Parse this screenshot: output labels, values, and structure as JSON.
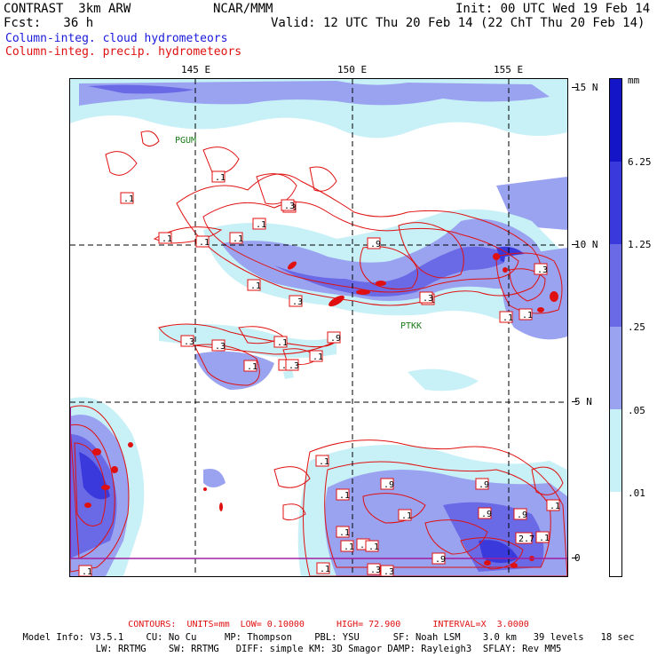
{
  "header": {
    "title": "CONTRAST  3km ARW",
    "center": "NCAR/MMM",
    "init": "Init: 00 UTC Wed 19 Feb 14",
    "fcst": "Fcst:   36 h",
    "valid": "Valid: 12 UTC Thu 20 Feb 14 (22 ChT Thu 20 Feb 14)"
  },
  "legend": {
    "cloud": "Column-integ. cloud hydrometeors",
    "precip": "Column-integ. precip. hydrometeors",
    "cloud_color": "#1a1adc",
    "precip_color": "#e01010"
  },
  "map": {
    "lon_labels": [
      "145 E",
      "150 E",
      "155 E"
    ],
    "lat_labels": [
      "15 N",
      "10 N",
      "5 N",
      "0"
    ],
    "stations": [
      "PGUM",
      "PTKK"
    ]
  },
  "colorbar": {
    "unit": "mm",
    "labels": [
      "6.25",
      "1.25",
      ".25",
      ".05",
      ".01"
    ],
    "colors": [
      "#1515c8",
      "#3a3adc",
      "#6a6ae6",
      "#9aa3f0",
      "#c7f0f7",
      "#ffffff"
    ]
  },
  "contour_labels": [
    ".1",
    ".1",
    ".1",
    ".1",
    ".1",
    ".3",
    ".1",
    ".3",
    ".1",
    ".9",
    ".1",
    ".3",
    ".3",
    ".9",
    ".3",
    ".1",
    ".3",
    ".1",
    ".1",
    ".3",
    ".1",
    ".1",
    ".3",
    ".9",
    ".1",
    ".1",
    ".9",
    ".1",
    ".9",
    ".1",
    ".3",
    ".1",
    ".1",
    ".9",
    ".1",
    ".3",
    ".3",
    ".1",
    ".1",
    "2.7",
    ".1",
    ".9",
    ".1"
  ],
  "footer": {
    "contours": "CONTOURS:  UNITS=mm  LOW= 0.10000      HIGH= 72.900      INTERVAL=X  3.0000",
    "model1": "Model Info: V3.5.1    CU: No Cu     MP: Thompson    PBL: YSU      SF: Noah LSM    3.0 km   39 levels   18 sec",
    "model2": "LW: RRTMG    SW: RRTMG   DIFF: simple KM: 3D Smagor DAMP: Rayleigh3  SFLAY: Rev MM5"
  }
}
